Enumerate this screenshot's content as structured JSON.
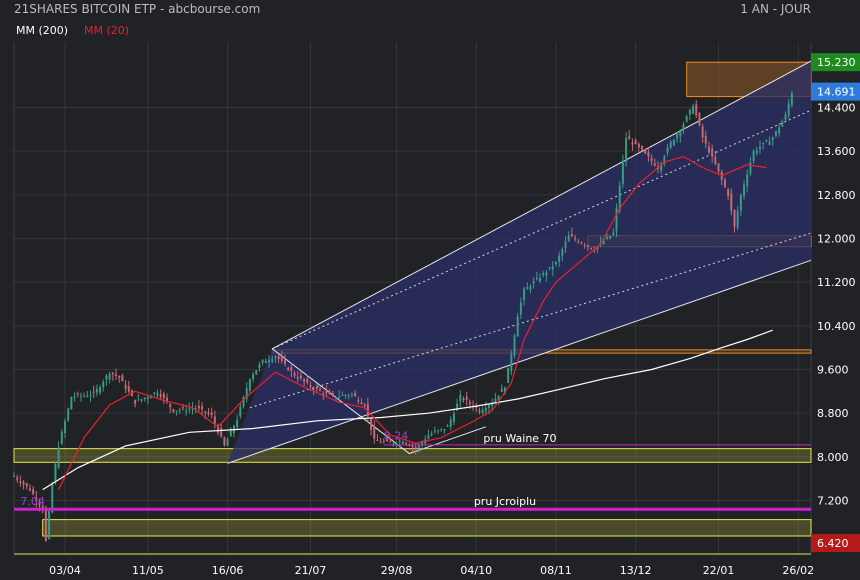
{
  "chart_data": {
    "type": "candlestick",
    "title": "21SHARES BITCOIN ETP - abcbourse.com",
    "period_label": "1 AN - JOUR",
    "legend": [
      {
        "label": "MM (200)",
        "color": "#ffffff"
      },
      {
        "label": "MM (20)",
        "color": "#e8232b"
      }
    ],
    "colors": {
      "background": "#202226",
      "up_candle": "#3a9b86",
      "down_candle": "#c86a74",
      "channel_fill": "#2a2f66",
      "zone_yellow": "#e8e84a",
      "zone_orange": "#f08a24",
      "magenta_line": "#cc22cc",
      "last_price_bg": "#2f7bdc",
      "high_bg": "#1f8a1f",
      "low_bg": "#b51a1a"
    },
    "x_axis": {
      "labels": [
        {
          "label": "03/04",
          "index": 16
        },
        {
          "label": "11/05",
          "index": 42
        },
        {
          "label": "16/06",
          "index": 67
        },
        {
          "label": "21/07",
          "index": 93
        },
        {
          "label": "29/08",
          "index": 120
        },
        {
          "label": "04/10",
          "index": 145
        },
        {
          "label": "08/11",
          "index": 170
        },
        {
          "label": "13/12",
          "index": 195
        },
        {
          "label": "22/01",
          "index": 221
        },
        {
          "label": "26/02",
          "index": 246
        }
      ],
      "range": [
        0,
        250
      ]
    },
    "y_axis": {
      "ticks": [
        "14.400",
        "13.600",
        "12.800",
        "12.000",
        "11.200",
        "10.400",
        "9.600",
        "8.800",
        "8.000",
        "7.200"
      ],
      "range": [
        6.22,
        15.6
      ]
    },
    "price_badges": [
      {
        "label": "15.230",
        "value": 15.23,
        "role": "high"
      },
      {
        "label": "14.691",
        "value": 14.691,
        "role": "last"
      },
      {
        "label": "6.420",
        "value": 6.42,
        "role": "low"
      }
    ],
    "annotations": [
      {
        "label": "7.04",
        "index": 2,
        "value": 7.04
      },
      {
        "label": "8.24",
        "index": 116,
        "value": 8.24
      },
      {
        "label": "pru Waine 70",
        "index": 151,
        "value": 8.2
      },
      {
        "label": "pru Jcroiplu",
        "index": 148,
        "value": 7.04
      }
    ],
    "zones": [
      {
        "kind": "yellow",
        "from": 7.9,
        "to": 8.15
      },
      {
        "kind": "yellow",
        "from": 6.55,
        "to": 6.85
      },
      {
        "kind": "orange",
        "from": 11.85,
        "to": 12.05
      },
      {
        "kind": "orange",
        "from": 9.9,
        "to": 9.96
      },
      {
        "kind": "orange-box",
        "from": 14.6,
        "to": 15.23
      }
    ],
    "channel": {
      "upper": [
        [
          81,
          9.98
        ],
        [
          250,
          15.25
        ]
      ],
      "lower": [
        [
          67,
          7.88
        ],
        [
          250,
          11.6
        ]
      ],
      "inner": [
        [
          [
            81,
            9.98
          ],
          [
            250,
            14.35
          ]
        ],
        [
          [
            74,
            8.9
          ],
          [
            250,
            12.1
          ]
        ]
      ],
      "pivot_low": [
        124,
        8.06
      ]
    },
    "ma200": [
      [
        9,
        7.4
      ],
      [
        20,
        7.8
      ],
      [
        35,
        8.2
      ],
      [
        55,
        8.45
      ],
      [
        75,
        8.52
      ],
      [
        95,
        8.66
      ],
      [
        115,
        8.72
      ],
      [
        130,
        8.8
      ],
      [
        145,
        8.93
      ],
      [
        158,
        9.06
      ],
      [
        170,
        9.22
      ],
      [
        185,
        9.43
      ],
      [
        200,
        9.6
      ],
      [
        212,
        9.8
      ],
      [
        222,
        10.0
      ],
      [
        230,
        10.15
      ],
      [
        238,
        10.32
      ]
    ],
    "ma20": [
      [
        14,
        7.4
      ],
      [
        22,
        8.35
      ],
      [
        30,
        8.95
      ],
      [
        38,
        9.2
      ],
      [
        46,
        9.05
      ],
      [
        56,
        8.9
      ],
      [
        64,
        8.55
      ],
      [
        72,
        9.05
      ],
      [
        82,
        9.55
      ],
      [
        92,
        9.25
      ],
      [
        102,
        9.0
      ],
      [
        110,
        8.9
      ],
      [
        118,
        8.4
      ],
      [
        126,
        8.25
      ],
      [
        134,
        8.35
      ],
      [
        144,
        8.65
      ],
      [
        150,
        8.85
      ],
      [
        156,
        9.35
      ],
      [
        160,
        10.15
      ],
      [
        166,
        10.85
      ],
      [
        170,
        11.2
      ],
      [
        176,
        11.5
      ],
      [
        184,
        11.9
      ],
      [
        190,
        12.55
      ],
      [
        196,
        13.0
      ],
      [
        204,
        13.4
      ],
      [
        210,
        13.5
      ],
      [
        216,
        13.3
      ],
      [
        222,
        13.15
      ],
      [
        230,
        13.35
      ],
      [
        236,
        13.3
      ]
    ],
    "price_path": [
      [
        0,
        7.65
      ],
      [
        5,
        7.4
      ],
      [
        9,
        7.05
      ],
      [
        10,
        6.45
      ],
      [
        12,
        7.5
      ],
      [
        14,
        8.2
      ],
      [
        18,
        9.1
      ],
      [
        25,
        9.15
      ],
      [
        30,
        9.55
      ],
      [
        33,
        9.45
      ],
      [
        38,
        9.0
      ],
      [
        45,
        9.2
      ],
      [
        50,
        8.85
      ],
      [
        57,
        8.9
      ],
      [
        62,
        8.75
      ],
      [
        66,
        8.2
      ],
      [
        70,
        8.7
      ],
      [
        74,
        9.45
      ],
      [
        78,
        9.75
      ],
      [
        82,
        9.85
      ],
      [
        88,
        9.5
      ],
      [
        94,
        9.25
      ],
      [
        100,
        9.1
      ],
      [
        106,
        9.15
      ],
      [
        110,
        8.95
      ],
      [
        113,
        8.3
      ],
      [
        118,
        8.25
      ],
      [
        122,
        8.3
      ],
      [
        126,
        8.15
      ],
      [
        130,
        8.4
      ],
      [
        136,
        8.55
      ],
      [
        140,
        9.1
      ],
      [
        146,
        8.85
      ],
      [
        150,
        9.0
      ],
      [
        154,
        9.3
      ],
      [
        156,
        9.9
      ],
      [
        158,
        10.6
      ],
      [
        160,
        11.05
      ],
      [
        166,
        11.35
      ],
      [
        170,
        11.55
      ],
      [
        174,
        12.05
      ],
      [
        182,
        11.8
      ],
      [
        188,
        12.1
      ],
      [
        192,
        13.85
      ],
      [
        197,
        13.6
      ],
      [
        202,
        13.3
      ],
      [
        206,
        13.75
      ],
      [
        210,
        14.1
      ],
      [
        213,
        14.45
      ],
      [
        216,
        13.85
      ],
      [
        220,
        13.35
      ],
      [
        224,
        12.8
      ],
      [
        226,
        12.2
      ],
      [
        228,
        12.8
      ],
      [
        232,
        13.6
      ],
      [
        238,
        13.85
      ],
      [
        242,
        14.25
      ],
      [
        244,
        14.691
      ]
    ]
  }
}
